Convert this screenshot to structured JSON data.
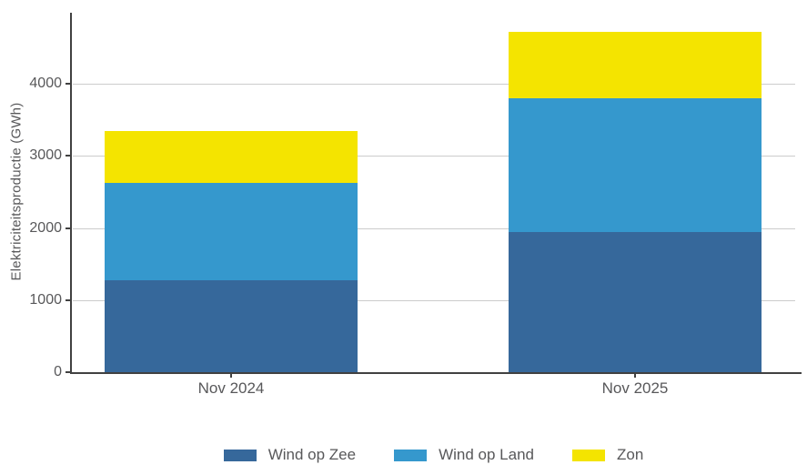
{
  "chart_data": {
    "type": "bar",
    "stacked": true,
    "title": "",
    "xlabel": "",
    "ylabel": "Elektriciteitsproductie (GWh)",
    "categories": [
      "Nov 2024",
      "Nov 2025"
    ],
    "series": [
      {
        "name": "Wind op Zee",
        "color": "#36689b",
        "values": [
          1280,
          1940
        ]
      },
      {
        "name": "Wind op Land",
        "color": "#3598cd",
        "values": [
          1350,
          1860
        ]
      },
      {
        "name": "Zon",
        "color": "#f4e400",
        "values": [
          720,
          920
        ]
      }
    ],
    "stack_totals": [
      3350,
      4720
    ],
    "ylim": [
      0,
      5000
    ],
    "yticks": [
      0,
      1000,
      2000,
      3000,
      4000
    ],
    "grid": true,
    "legend_position": "bottom",
    "colors": {
      "axis": "#414141",
      "gridline": "#cccccc",
      "text": "#58585a",
      "background": "#ffffff"
    }
  }
}
